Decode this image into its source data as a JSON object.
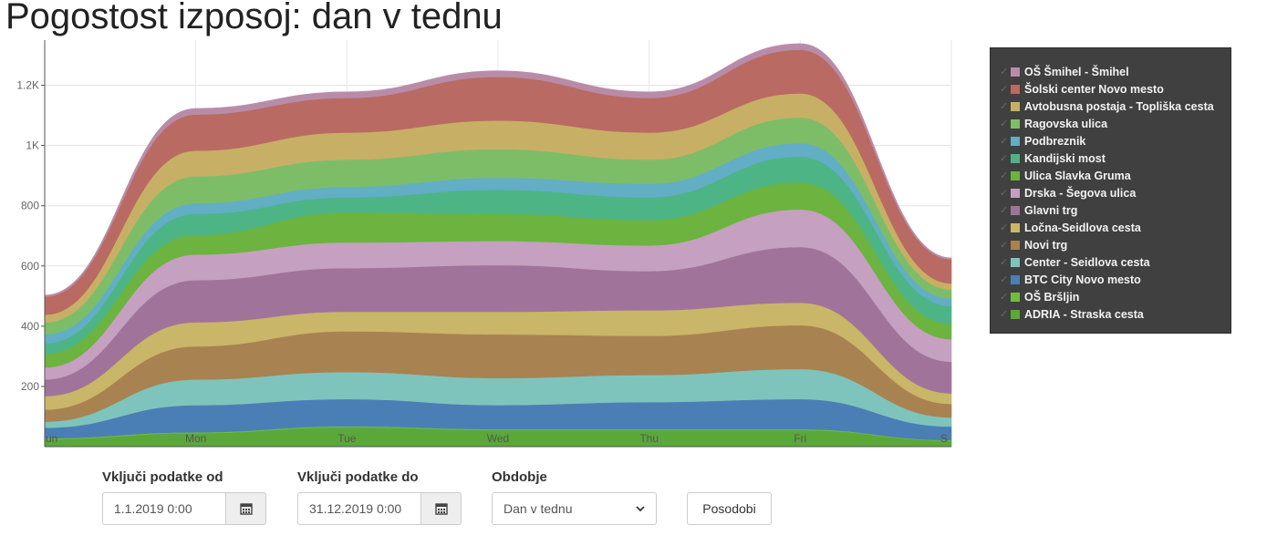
{
  "title": "Pogostost izposoj: dan v tednu",
  "controls": {
    "from_label": "Vključi podatke od",
    "from_value": "1.1.2019 0:00",
    "to_label": "Vključi podatke do",
    "to_value": "31.12.2019 0:00",
    "period_label": "Obdobje",
    "period_value": "Dan v tednu",
    "update_label": "Posodobi",
    "calendar_icon": "calendar-icon",
    "dropdown_icon": "chevron-down-icon"
  },
  "legend_check_glyph": "✓",
  "chart_data": {
    "type": "area",
    "stacked": true,
    "interpolation": "smooth",
    "categories": [
      "Sun",
      "Mon",
      "Tue",
      "Wed",
      "Thu",
      "Fri",
      "Sat"
    ],
    "xtick_labels_visible": [
      "un",
      "Mon",
      "Tue",
      "Wed",
      "Thu",
      "Fri",
      "S"
    ],
    "ylim": [
      0,
      1350
    ],
    "yticks": [
      200,
      400,
      600,
      800,
      1000,
      1200
    ],
    "ytick_labels": [
      "200",
      "400",
      "600",
      "800",
      "1K",
      "1.2K"
    ],
    "grid": true,
    "legend_position": "right",
    "series": [
      {
        "name": "ADRIA - Straska cesta",
        "color": "#5aa83a",
        "values": [
          25,
          45,
          65,
          55,
          55,
          55,
          20
        ]
      },
      {
        "name": "OŠ Bršljin",
        "color": "#6fbf3f",
        "values": [
          3,
          3,
          3,
          3,
          3,
          3,
          2
        ]
      },
      {
        "name": "BTC City Novo mesto",
        "color": "#4a7fb5",
        "values": [
          35,
          90,
          90,
          80,
          90,
          100,
          45
        ]
      },
      {
        "name": "Center - Seidlova cesta",
        "color": "#7ec4bc",
        "values": [
          20,
          85,
          90,
          90,
          90,
          100,
          30
        ]
      },
      {
        "name": "Novi trg",
        "color": "#a88250",
        "values": [
          40,
          110,
          135,
          145,
          130,
          145,
          45
        ]
      },
      {
        "name": "Ločna-Seidlova cesta",
        "color": "#c9b668",
        "values": [
          45,
          80,
          65,
          75,
          85,
          75,
          35
        ]
      },
      {
        "name": "Glavni trg",
        "color": "#a0749a",
        "values": [
          55,
          140,
          145,
          155,
          130,
          185,
          105
        ]
      },
      {
        "name": "Drska - Šegova ulica",
        "color": "#c5a0c0",
        "values": [
          40,
          85,
          85,
          80,
          85,
          125,
          75
        ]
      },
      {
        "name": "Ulica Slavka Gruma",
        "color": "#6cb33f",
        "values": [
          45,
          65,
          100,
          90,
          85,
          90,
          50
        ]
      },
      {
        "name": "Kandijski most",
        "color": "#4db486",
        "values": [
          35,
          70,
          50,
          80,
          75,
          85,
          60
        ]
      },
      {
        "name": "Podbreznik",
        "color": "#62aec4",
        "values": [
          30,
          35,
          35,
          40,
          45,
          45,
          25
        ]
      },
      {
        "name": "Ragovska ulica",
        "color": "#7dbd68",
        "values": [
          40,
          90,
          90,
          95,
          80,
          85,
          30
        ]
      },
      {
        "name": "Avtobusna postaja - Topliška cesta",
        "color": "#c7b065",
        "values": [
          25,
          85,
          90,
          95,
          90,
          80,
          20
        ]
      },
      {
        "name": "Šolski center Novo mesto",
        "color": "#b96a62",
        "values": [
          60,
          120,
          115,
          145,
          115,
          145,
          80
        ]
      },
      {
        "name": "OŠ Šmihel - Šmihel",
        "color": "#b88ca8",
        "values": [
          5,
          20,
          20,
          20,
          20,
          20,
          5
        ]
      }
    ]
  }
}
